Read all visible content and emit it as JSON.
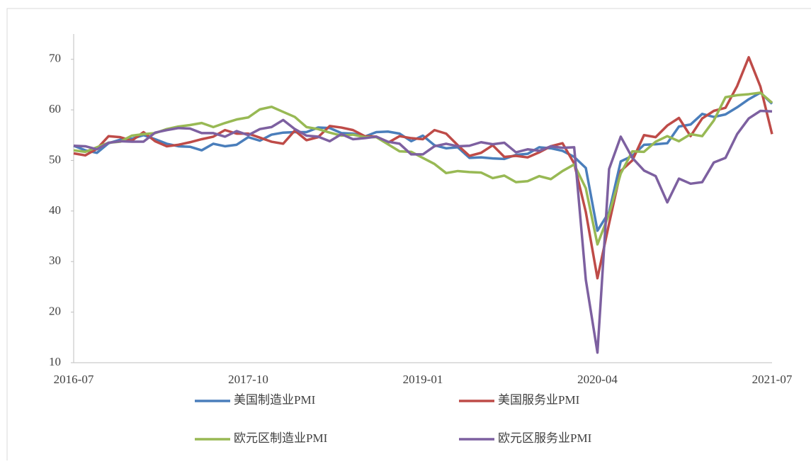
{
  "chart_data": {
    "type": "line",
    "categories": [
      "2016-07",
      null,
      null,
      null,
      null,
      null,
      null,
      null,
      null,
      null,
      null,
      null,
      null,
      null,
      null,
      "2017-10",
      null,
      null,
      null,
      null,
      null,
      null,
      null,
      null,
      null,
      null,
      null,
      null,
      null,
      null,
      "2019-01",
      null,
      null,
      null,
      null,
      null,
      null,
      null,
      null,
      null,
      null,
      null,
      null,
      null,
      null,
      "2020-04",
      null,
      null,
      null,
      null,
      null,
      null,
      null,
      null,
      null,
      null,
      null,
      null,
      null,
      null,
      "2021-07"
    ],
    "series": [
      {
        "name": "美国制造业PMI",
        "color": "#4a7ebb",
        "values": [
          52.9,
          52.0,
          51.5,
          53.4,
          54.1,
          54.3,
          55.0,
          54.2,
          53.3,
          52.8,
          52.7,
          52.0,
          53.3,
          52.8,
          53.1,
          54.6,
          53.9,
          55.1,
          55.5,
          55.6,
          55.6,
          56.5,
          56.4,
          55.4,
          55.3,
          54.7,
          55.6,
          55.7,
          55.3,
          53.8,
          54.9,
          53.0,
          52.4,
          52.6,
          50.5,
          50.6,
          50.4,
          50.3,
          51.1,
          51.3,
          52.6,
          52.4,
          51.9,
          50.7,
          48.5,
          36.1,
          39.8,
          49.8,
          50.9,
          53.1,
          53.2,
          53.4,
          56.7,
          57.1,
          59.2,
          58.6,
          59.1,
          60.5,
          62.1,
          63.4,
          61.2
        ]
      },
      {
        "name": "美国服务业PMI",
        "color": "#be4b48",
        "values": [
          51.4,
          51.0,
          52.3,
          54.8,
          54.6,
          53.9,
          55.6,
          53.8,
          52.8,
          53.1,
          53.6,
          54.2,
          54.7,
          56.0,
          55.3,
          55.3,
          54.5,
          53.7,
          53.3,
          55.9,
          54.0,
          54.6,
          56.8,
          56.5,
          56.0,
          54.8,
          54.7,
          53.5,
          54.8,
          54.4,
          54.2,
          56.0,
          55.3,
          53.0,
          50.9,
          51.5,
          53.0,
          50.7,
          50.9,
          50.6,
          51.6,
          52.8,
          53.4,
          49.4,
          39.8,
          26.7,
          37.5,
          47.9,
          50.0,
          55.0,
          54.6,
          56.9,
          58.4,
          54.8,
          58.3,
          59.8,
          60.4,
          64.7,
          70.4,
          64.6,
          55.2
        ]
      },
      {
        "name": "欧元区制造业PMI",
        "color": "#98b954",
        "values": [
          52.0,
          51.7,
          52.6,
          53.5,
          53.7,
          54.9,
          55.2,
          55.4,
          56.2,
          56.7,
          57.0,
          57.4,
          56.6,
          57.4,
          58.1,
          58.5,
          60.1,
          60.6,
          59.6,
          58.6,
          56.6,
          56.2,
          55.5,
          54.9,
          55.1,
          54.6,
          54.6,
          53.2,
          51.8,
          51.7,
          50.5,
          49.3,
          47.5,
          47.9,
          47.7,
          47.6,
          46.5,
          47.0,
          45.7,
          45.9,
          46.9,
          46.3,
          47.9,
          49.2,
          44.5,
          33.4,
          39.4,
          47.4,
          51.8,
          51.7,
          53.7,
          54.8,
          53.8,
          55.2,
          54.8,
          57.9,
          62.5,
          62.9,
          63.1,
          63.4,
          61.4
        ]
      },
      {
        "name": "欧元区服务业PMI",
        "color": "#7d60a0",
        "values": [
          52.9,
          52.8,
          52.2,
          53.5,
          53.8,
          53.7,
          53.7,
          55.5,
          56.0,
          56.4,
          56.3,
          55.4,
          55.4,
          54.7,
          55.8,
          55.0,
          56.2,
          56.6,
          58.0,
          56.2,
          54.9,
          54.7,
          53.8,
          55.2,
          54.2,
          54.4,
          54.7,
          53.7,
          53.3,
          51.2,
          51.2,
          52.8,
          53.3,
          52.8,
          52.9,
          53.6,
          53.2,
          53.5,
          51.6,
          52.2,
          51.9,
          52.8,
          52.5,
          52.6,
          26.4,
          12.0,
          48.3,
          54.7,
          50.5,
          48.0,
          46.9,
          41.7,
          46.4,
          45.4,
          45.7,
          49.6,
          50.5,
          55.2,
          58.3,
          59.8,
          59.7
        ]
      }
    ],
    "ylim": [
      10,
      75
    ],
    "yticks": [
      10,
      20,
      30,
      40,
      50,
      60,
      70
    ],
    "grid": false,
    "legend": "bottom"
  }
}
